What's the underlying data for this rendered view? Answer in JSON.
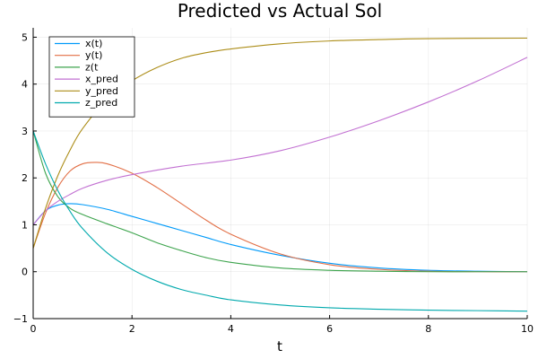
{
  "chart_data": {
    "type": "line",
    "title": "Predicted vs Actual Sol",
    "xlabel": "t",
    "ylabel": "",
    "xlim": [
      0,
      10
    ],
    "ylim": [
      -1,
      5.2
    ],
    "xticks": [
      0,
      2,
      4,
      6,
      8,
      10
    ],
    "yticks": [
      -1,
      0,
      1,
      2,
      3,
      4,
      5
    ],
    "grid": true,
    "legend_position": "top-left",
    "series": [
      {
        "name": "x(t)",
        "color": "#009af9",
        "x": [
          0,
          0.25,
          0.5,
          0.75,
          1,
          1.5,
          2,
          2.5,
          3,
          3.5,
          4,
          5,
          6,
          7,
          8,
          9,
          10
        ],
        "y": [
          1.0,
          1.3,
          1.42,
          1.45,
          1.43,
          1.33,
          1.18,
          1.03,
          0.88,
          0.73,
          0.58,
          0.35,
          0.18,
          0.08,
          0.03,
          0.01,
          0.0
        ]
      },
      {
        "name": "y(t)",
        "color": "#e26f46",
        "x": [
          0,
          0.25,
          0.5,
          0.75,
          1,
          1.25,
          1.5,
          2,
          2.5,
          3,
          3.5,
          4,
          5,
          6,
          7,
          8,
          9,
          10
        ],
        "y": [
          0.5,
          1.25,
          1.8,
          2.15,
          2.3,
          2.33,
          2.3,
          2.1,
          1.8,
          1.45,
          1.1,
          0.8,
          0.38,
          0.15,
          0.05,
          0.01,
          0.0,
          0.0
        ]
      },
      {
        "name": "z(t",
        "color": "#3da44d",
        "x": [
          0,
          0.25,
          0.5,
          0.75,
          1,
          1.5,
          2,
          2.5,
          3,
          3.5,
          4,
          5,
          6,
          7,
          8,
          9,
          10
        ],
        "y": [
          3.0,
          2.1,
          1.6,
          1.35,
          1.22,
          1.02,
          0.83,
          0.62,
          0.45,
          0.3,
          0.2,
          0.08,
          0.03,
          0.01,
          0.0,
          0.0,
          0.0
        ]
      },
      {
        "name": "x_pred",
        "color": "#c271d2",
        "x": [
          0,
          0.25,
          0.5,
          0.75,
          1,
          1.5,
          2,
          3,
          4,
          5,
          6,
          7,
          8,
          9,
          10
        ],
        "y": [
          1.0,
          1.3,
          1.5,
          1.65,
          1.78,
          1.95,
          2.07,
          2.25,
          2.38,
          2.58,
          2.87,
          3.22,
          3.62,
          4.07,
          4.57
        ]
      },
      {
        "name": "y_pred",
        "color": "#ac8d18",
        "x": [
          0,
          0.25,
          0.5,
          0.75,
          1,
          1.5,
          2,
          2.5,
          3,
          3.5,
          4,
          5,
          6,
          7,
          8,
          10
        ],
        "y": [
          0.5,
          1.35,
          2.05,
          2.6,
          3.05,
          3.68,
          4.07,
          4.35,
          4.55,
          4.67,
          4.75,
          4.86,
          4.92,
          4.95,
          4.97,
          4.98
        ]
      },
      {
        "name": "z_pred",
        "color": "#00a9ad",
        "x": [
          0,
          0.25,
          0.5,
          0.75,
          1,
          1.5,
          2,
          2.5,
          3,
          3.5,
          4,
          5,
          6,
          7,
          8,
          9,
          10
        ],
        "y": [
          3.0,
          2.3,
          1.73,
          1.28,
          0.92,
          0.4,
          0.05,
          -0.2,
          -0.38,
          -0.5,
          -0.6,
          -0.71,
          -0.77,
          -0.8,
          -0.82,
          -0.83,
          -0.84
        ]
      }
    ]
  }
}
